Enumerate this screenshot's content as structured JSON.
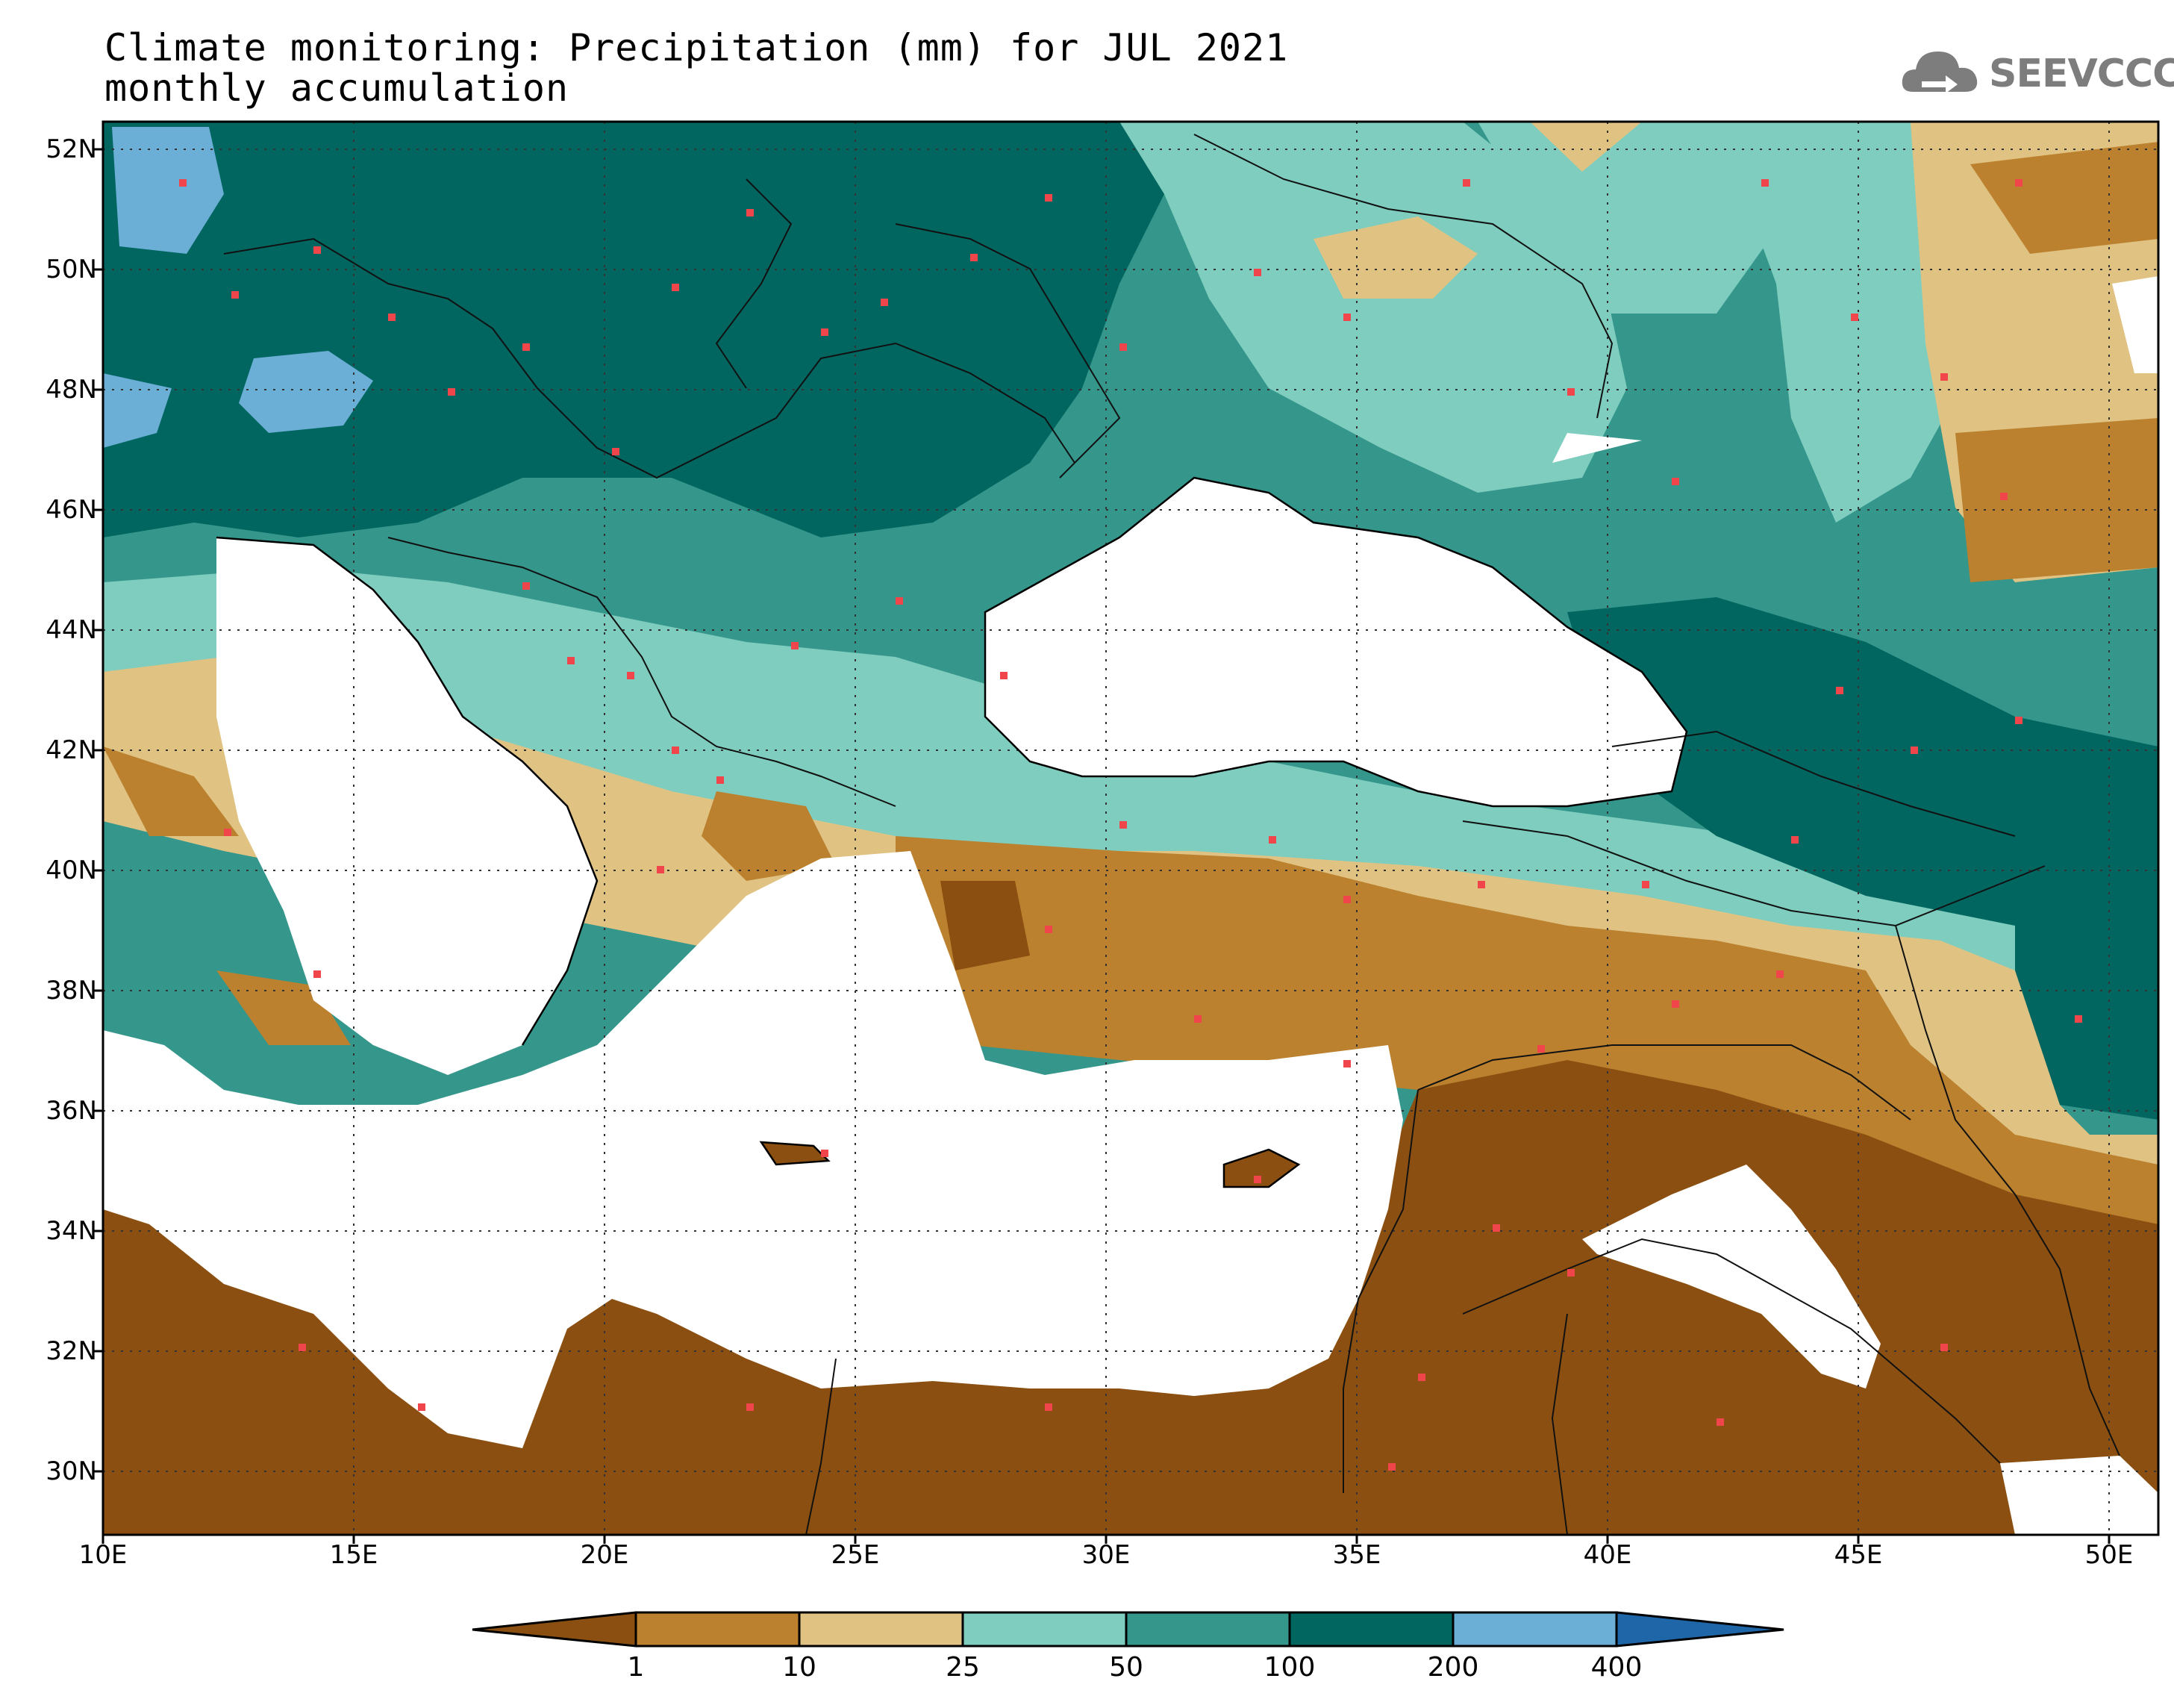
{
  "title_line1": "Climate monitoring: Precipitation (mm) for JUL 2021",
  "title_line2": "monthly accumulation",
  "logo_text": "SEEVCCC",
  "logo_icon": "cloud-arrow-icon",
  "map": {
    "type": "filled-contour precipitation map",
    "lon_range": [
      10,
      51
    ],
    "lat_range": [
      29,
      52.5
    ],
    "lat_labels": [
      "52N",
      "50N",
      "48N",
      "46N",
      "44N",
      "42N",
      "40N",
      "38N",
      "36N",
      "34N",
      "32N",
      "30N"
    ],
    "lon_labels": [
      "10E",
      "15E",
      "20E",
      "25E",
      "30E",
      "35E",
      "40E",
      "45E",
      "50E"
    ],
    "station_marker_color": "#f0464b"
  },
  "colorbar": {
    "levels": [
      "1",
      "10",
      "25",
      "50",
      "100",
      "200",
      "400"
    ],
    "colors": [
      "#8b5011",
      "#bb812f",
      "#e0c383",
      "#7fcdbf",
      "#35968b",
      "#016660",
      "#6baed6",
      "#1f66a8"
    ]
  }
}
